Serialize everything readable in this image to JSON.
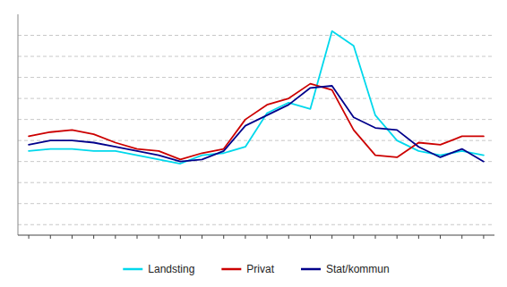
{
  "chart_data": {
    "type": "line",
    "categories": [
      null,
      null,
      null,
      null,
      null,
      null,
      null,
      null,
      null,
      null,
      null,
      null,
      null,
      null,
      null,
      null,
      null,
      null,
      null,
      null,
      null,
      null
    ],
    "series": [
      {
        "name": "Landsting",
        "color": "#00D8EC",
        "values": [
          2.5,
          2.6,
          2.6,
          2.5,
          2.5,
          2.3,
          2.1,
          1.9,
          2.3,
          2.4,
          2.7,
          4.3,
          4.8,
          4.5,
          8.2,
          7.5,
          4.2,
          3.0,
          2.5,
          2.3,
          2.5,
          2.3
        ]
      },
      {
        "name": "Privat",
        "color": "#CC0000",
        "values": [
          3.2,
          3.4,
          3.5,
          3.3,
          2.9,
          2.6,
          2.5,
          2.1,
          2.4,
          2.6,
          4.0,
          4.7,
          5.0,
          5.7,
          5.4,
          3.5,
          2.3,
          2.2,
          2.9,
          2.8,
          3.2,
          3.2
        ]
      },
      {
        "name": "Stat/kommun",
        "color": "#00008B",
        "values": [
          2.8,
          3.0,
          3.0,
          2.9,
          2.7,
          2.5,
          2.3,
          2.0,
          2.1,
          2.5,
          3.7,
          4.2,
          4.7,
          5.5,
          5.6,
          4.1,
          3.6,
          3.5,
          2.7,
          2.2,
          2.6,
          2.0
        ]
      }
    ],
    "ylim": [
      -1.5,
      9.0
    ],
    "yticks": [
      -1,
      0,
      1,
      2,
      3,
      4,
      5,
      6,
      7,
      8
    ],
    "grid": true,
    "tick_labels": false,
    "legend": "bottom"
  }
}
